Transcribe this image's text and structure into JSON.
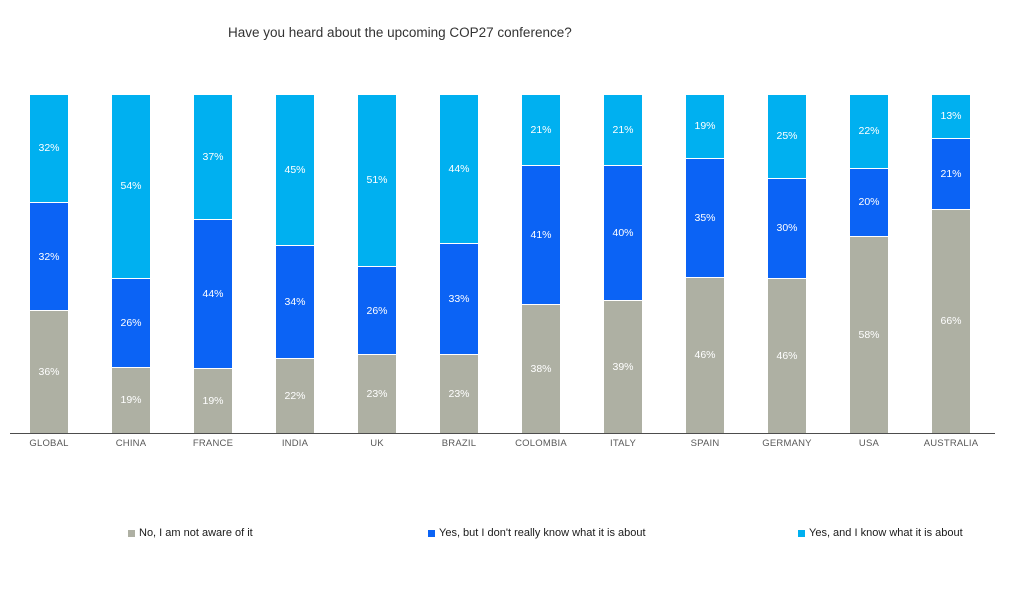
{
  "title": "Have you heard about the upcoming COP27 conference?",
  "chart_data": {
    "type": "bar",
    "subtype": "stacked-100-percent-column",
    "title": "Have you heard about the upcoming COP27 conference?",
    "xlabel": "",
    "ylabel": "",
    "ylim": [
      0,
      100
    ],
    "grid": false,
    "legend_position": "bottom",
    "value_suffix": "%",
    "categories": [
      "GLOBAL",
      "CHINA",
      "FRANCE",
      "INDIA",
      "UK",
      "BRAZIL",
      "COLOMBIA",
      "ITALY",
      "SPAIN",
      "GERMANY",
      "USA",
      "AUSTRALIA"
    ],
    "series": [
      {
        "name": "No, I am not aware of it",
        "color": "#AEB0A3",
        "values": [
          36,
          19,
          19,
          22,
          23,
          23,
          38,
          39,
          46,
          46,
          58,
          66
        ]
      },
      {
        "name": "Yes, but I don't really know what it is about",
        "color": "#0B63F5",
        "values": [
          32,
          26,
          44,
          34,
          26,
          33,
          41,
          40,
          35,
          30,
          20,
          21
        ]
      },
      {
        "name": "Yes, and I know what it is about",
        "color": "#00B0F0",
        "values": [
          32,
          54,
          37,
          45,
          51,
          44,
          21,
          21,
          19,
          25,
          22,
          13
        ]
      }
    ]
  },
  "legend": {
    "items": [
      {
        "label": "No, I am not aware of it",
        "color": "#AEB0A3"
      },
      {
        "label": "Yes, but I don't really know what it is about",
        "color": "#0B63F5"
      },
      {
        "label": "Yes, and I know what it is about",
        "color": "#00B0F0"
      }
    ]
  }
}
